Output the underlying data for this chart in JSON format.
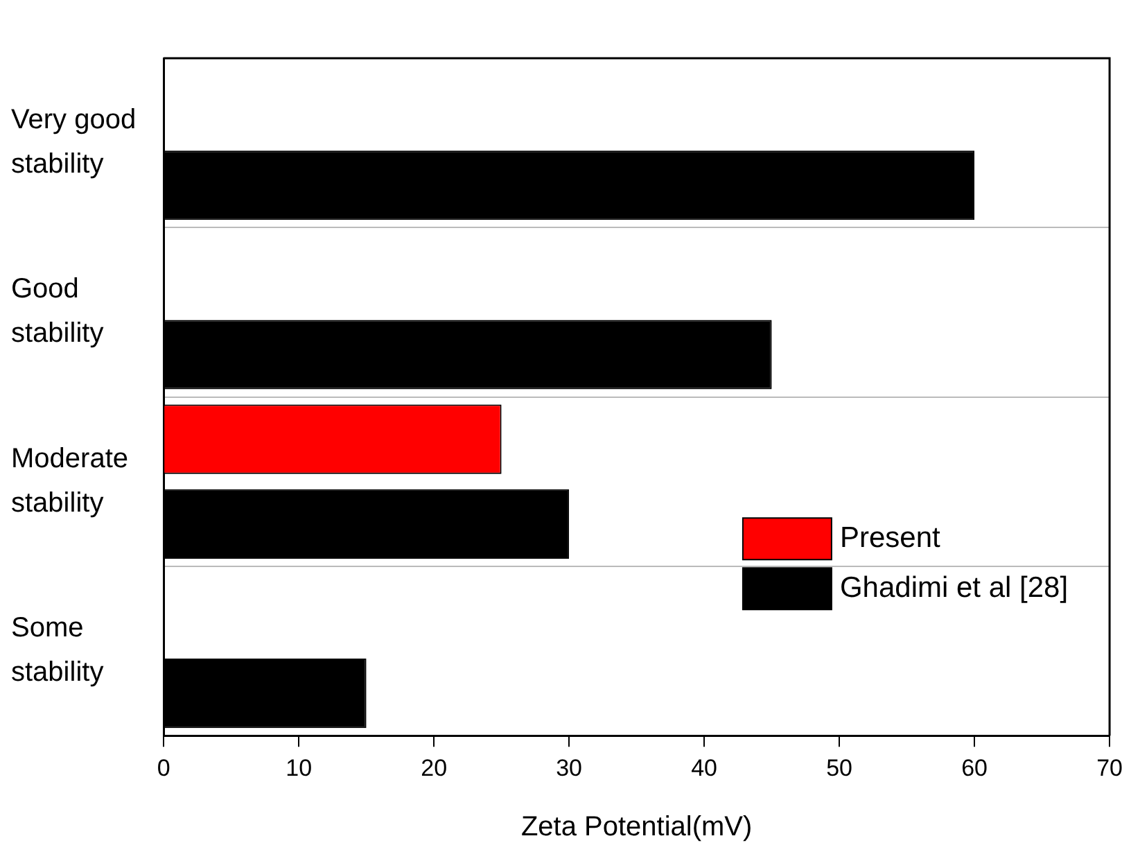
{
  "chart_data": {
    "type": "bar",
    "orientation": "horizontal",
    "xlabel": "Zeta Potential(mV)",
    "categories": [
      "Very good stability",
      "Good stability",
      "Moderate stability",
      "Some stability"
    ],
    "series": [
      {
        "name": "Present",
        "color": "#ff0000",
        "values": [
          null,
          null,
          25,
          null
        ]
      },
      {
        "name": "Ghadimi et al [28]",
        "color": "#000000",
        "values": [
          60,
          45,
          30,
          15
        ]
      }
    ],
    "xlim": [
      0,
      70
    ],
    "xticks": [
      0,
      10,
      20,
      30,
      40,
      50,
      60,
      70
    ],
    "grid": "y",
    "legend": "bottom right"
  }
}
